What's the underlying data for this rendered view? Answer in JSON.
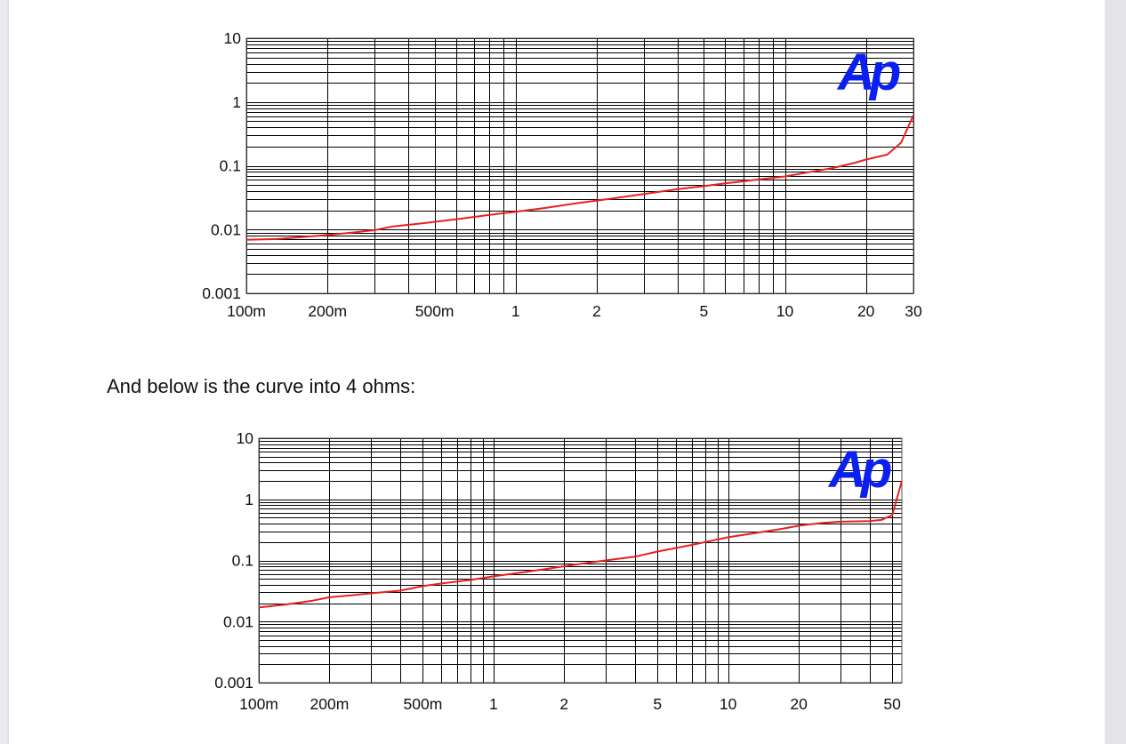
{
  "text": {
    "paragraph": "And below is the curve into 4 ohms:"
  },
  "colors": {
    "curve": "#e8201f",
    "logo": "#0a1ff0",
    "grid": "#000000"
  },
  "chart_data": [
    {
      "type": "line",
      "xscale": "log",
      "yscale": "log",
      "xlim": [
        0.1,
        30
      ],
      "ylim": [
        0.001,
        10
      ],
      "grid": true,
      "logo": "Ap",
      "xticks": [
        {
          "label": "100m",
          "value": 0.1
        },
        {
          "label": "200m",
          "value": 0.2
        },
        {
          "label": "500m",
          "value": 0.5
        },
        {
          "label": "1",
          "value": 1
        },
        {
          "label": "2",
          "value": 2
        },
        {
          "label": "5",
          "value": 5
        },
        {
          "label": "10",
          "value": 10
        },
        {
          "label": "20",
          "value": 20
        },
        {
          "label": "30",
          "value": 30
        }
      ],
      "yticks": [
        {
          "label": "10",
          "value": 10
        },
        {
          "label": "1",
          "value": 1
        },
        {
          "label": "0.1",
          "value": 0.1
        },
        {
          "label": "0.01",
          "value": 0.01
        },
        {
          "label": "0.001",
          "value": 0.001
        }
      ],
      "series": [
        {
          "x": [
            0.1,
            0.13,
            0.16,
            0.2,
            0.25,
            0.3,
            0.35,
            0.45,
            0.6,
            0.8,
            1.0,
            1.3,
            1.7,
            2.2,
            3,
            4,
            5,
            6,
            7,
            8,
            10,
            12,
            15,
            18,
            20,
            24,
            27,
            30
          ],
          "y": [
            0.0069,
            0.0071,
            0.0076,
            0.0082,
            0.009,
            0.0098,
            0.0112,
            0.0125,
            0.0145,
            0.017,
            0.019,
            0.022,
            0.026,
            0.03,
            0.036,
            0.043,
            0.048,
            0.053,
            0.057,
            0.061,
            0.068,
            0.078,
            0.092,
            0.11,
            0.125,
            0.15,
            0.23,
            0.62
          ]
        }
      ]
    },
    {
      "type": "line",
      "xscale": "log",
      "yscale": "log",
      "xlim": [
        0.1,
        55
      ],
      "ylim": [
        0.001,
        10
      ],
      "grid": true,
      "logo": "Ap",
      "xticks": [
        {
          "label": "100m",
          "value": 0.1
        },
        {
          "label": "200m",
          "value": 0.2
        },
        {
          "label": "500m",
          "value": 0.5
        },
        {
          "label": "1",
          "value": 1
        },
        {
          "label": "2",
          "value": 2
        },
        {
          "label": "5",
          "value": 5
        },
        {
          "label": "10",
          "value": 10
        },
        {
          "label": "20",
          "value": 20
        },
        {
          "label": "50",
          "value": 50
        }
      ],
      "yticks": [
        {
          "label": "10",
          "value": 10
        },
        {
          "label": "1",
          "value": 1
        },
        {
          "label": "0.1",
          "value": 0.1
        },
        {
          "label": "0.01",
          "value": 0.01
        },
        {
          "label": "0.001",
          "value": 0.001
        }
      ],
      "series": [
        {
          "x": [
            0.1,
            0.13,
            0.17,
            0.2,
            0.25,
            0.3,
            0.4,
            0.5,
            0.6,
            0.8,
            1.0,
            1.3,
            1.7,
            2.2,
            3,
            4,
            5,
            6,
            7,
            8,
            10,
            13,
            17,
            20,
            25,
            30,
            40,
            45,
            50,
            55
          ],
          "y": [
            0.017,
            0.019,
            0.022,
            0.025,
            0.027,
            0.029,
            0.032,
            0.038,
            0.042,
            0.048,
            0.055,
            0.063,
            0.073,
            0.085,
            0.1,
            0.115,
            0.14,
            0.16,
            0.18,
            0.2,
            0.24,
            0.28,
            0.33,
            0.37,
            0.41,
            0.43,
            0.44,
            0.46,
            0.55,
            2.0
          ]
        }
      ]
    }
  ]
}
